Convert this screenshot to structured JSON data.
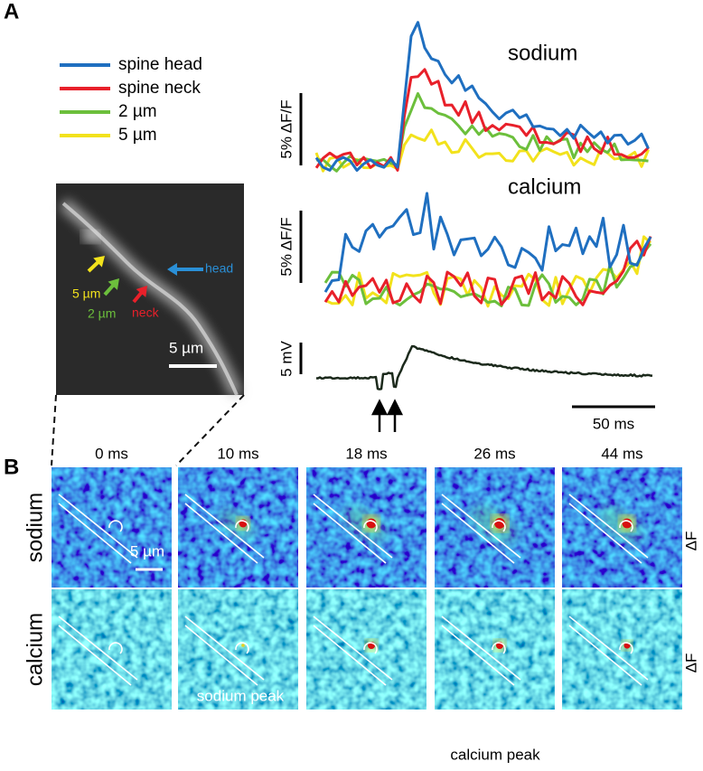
{
  "panel_a": {
    "label": "A",
    "legend": [
      {
        "label": "spine head",
        "color": "#1f6fc0"
      },
      {
        "label": "spine neck",
        "color": "#e8202a"
      },
      {
        "label": "2 µm",
        "color": "#6cbf3c"
      },
      {
        "label": "5 µm",
        "color": "#f2e21c"
      }
    ],
    "sodium_title": "sodium",
    "calcium_title": "calcium",
    "sodium_scale": "5% ΔF/F",
    "calcium_scale": "5% ΔF/F",
    "voltage_scale": "5 mV",
    "time_scale": "50 ms",
    "image": {
      "arrows": [
        {
          "label": "head",
          "color": "#2a8fd6"
        },
        {
          "label": "5 µm",
          "color": "#f2e21c"
        },
        {
          "label": "2 µm",
          "color": "#6cbf3c"
        },
        {
          "label": "neck",
          "color": "#e8202a"
        }
      ],
      "scale_bar": "5 µm"
    }
  },
  "panel_b": {
    "label": "B",
    "times": [
      "0 ms",
      "10 ms",
      "18 ms",
      "26 ms",
      "44 ms"
    ],
    "rows": [
      {
        "label": "sodium",
        "unit": "ΔF"
      },
      {
        "label": "calcium",
        "unit": "ΔF"
      }
    ],
    "scale_bar": "5 µm",
    "sodium_peak": "sodium peak",
    "calcium_peak": "calcium peak"
  }
}
